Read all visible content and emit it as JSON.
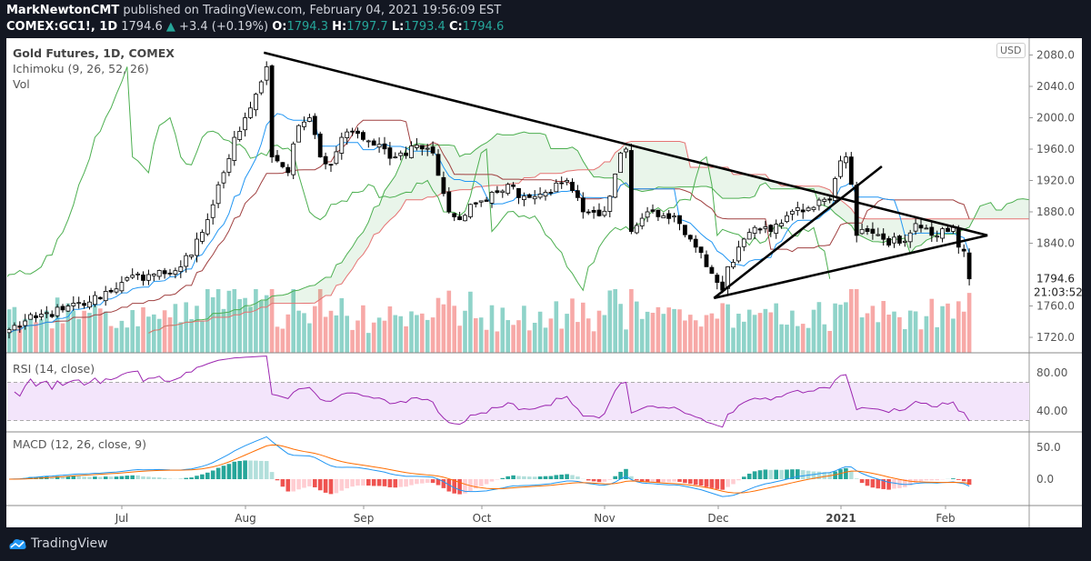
{
  "header": {
    "author": "MarkNewtonCMT",
    "published": "published on TradingView.com, February 04, 2021 19:56:09 EST",
    "symbol": "COMEX:GC1!, 1D",
    "last": "1794.6",
    "change": "+3.4 (+0.19%)",
    "o_label": "O:",
    "o": "1794.3",
    "h_label": "H:",
    "h": "1797.7",
    "l_label": "L:",
    "l": "1793.4",
    "c_label": "C:",
    "c": "1794.6"
  },
  "legend": {
    "title": "Gold Futures, 1D, COMEX",
    "ichimoku": "Ichimoku (9, 26, 52, 26)",
    "vol": "Vol",
    "rsi": "RSI (14, close)",
    "macd": "MACD (12, 26, close, 9)"
  },
  "currency": "USD",
  "brand": "TradingView",
  "colors": {
    "tenkan": "#2196f3",
    "kijun": "#a04040",
    "chikou": "#4caf50",
    "spanA": "#4caf50",
    "spanB": "#e57373",
    "rsi": "#9c27b0",
    "macd": "#2196f3",
    "signal": "#ff6d00",
    "up": "#26a69a",
    "down": "#ef5350"
  },
  "chart_data": {
    "type": "candlestick",
    "title": "Gold Futures, 1D, COMEX",
    "ylim": [
      1700,
      2090
    ],
    "price_ticks": [
      "2080.0",
      "2040.0",
      "2000.0",
      "1960.0",
      "1920.0",
      "1880.0",
      "1840.0",
      "1760.0",
      "1720.0"
    ],
    "current_price": "1794.6",
    "countdown": "21:03:52",
    "time_ticks": [
      "Jul",
      "Aug",
      "Sep",
      "Oct",
      "Nov",
      "Dec",
      "2021",
      "Feb"
    ],
    "rsi_ticks": [
      "80.00",
      "40.00"
    ],
    "macd_ticks": [
      "50.0",
      "0.0"
    ],
    "bars": 180,
    "close_anchors": [
      [
        0,
        1730
      ],
      [
        5,
        1745
      ],
      [
        10,
        1755
      ],
      [
        15,
        1765
      ],
      [
        21,
        1790
      ],
      [
        26,
        1800
      ],
      [
        31,
        1805
      ],
      [
        34,
        1825
      ],
      [
        37,
        1870
      ],
      [
        40,
        1930
      ],
      [
        42,
        1975
      ],
      [
        44,
        2000
      ],
      [
        46,
        2030
      ],
      [
        48,
        2065
      ],
      [
        49,
        1950
      ],
      [
        50,
        1945
      ],
      [
        52,
        1930
      ],
      [
        54,
        1990
      ],
      [
        56,
        2000
      ],
      [
        58,
        1950
      ],
      [
        60,
        1940
      ],
      [
        62,
        1975
      ],
      [
        65,
        1980
      ],
      [
        68,
        1965
      ],
      [
        72,
        1950
      ],
      [
        76,
        1965
      ],
      [
        79,
        1955
      ],
      [
        82,
        1880
      ],
      [
        84,
        1870
      ],
      [
        87,
        1890
      ],
      [
        90,
        1905
      ],
      [
        93,
        1915
      ],
      [
        96,
        1900
      ],
      [
        100,
        1905
      ],
      [
        104,
        1920
      ],
      [
        107,
        1880
      ],
      [
        110,
        1875
      ],
      [
        112,
        1900
      ],
      [
        114,
        1955
      ],
      [
        115,
        1960
      ],
      [
        116,
        1855
      ],
      [
        119,
        1880
      ],
      [
        122,
        1875
      ],
      [
        125,
        1865
      ],
      [
        128,
        1835
      ],
      [
        130,
        1810
      ],
      [
        132,
        1790
      ],
      [
        133,
        1780
      ],
      [
        134,
        1810
      ],
      [
        136,
        1835
      ],
      [
        139,
        1860
      ],
      [
        142,
        1855
      ],
      [
        145,
        1875
      ],
      [
        148,
        1880
      ],
      [
        151,
        1895
      ],
      [
        153,
        1895
      ],
      [
        155,
        1945
      ],
      [
        156,
        1950
      ],
      [
        157,
        1915
      ],
      [
        158,
        1850
      ],
      [
        160,
        1855
      ],
      [
        163,
        1845
      ],
      [
        166,
        1840
      ],
      [
        169,
        1865
      ],
      [
        172,
        1850
      ],
      [
        175,
        1855
      ],
      [
        176,
        1860
      ],
      [
        177,
        1835
      ],
      [
        178,
        1830
      ],
      [
        179,
        1794.6
      ]
    ],
    "trendlines": [
      {
        "from": [
          47.5,
          2083
        ],
        "to": [
          182.4,
          1850
        ]
      },
      {
        "from": [
          131.4,
          1770
        ],
        "to": [
          182.4,
          1850
        ]
      },
      {
        "from": [
          131.4,
          1770
        ],
        "to": [
          162.7,
          1938
        ]
      }
    ],
    "indicators": [
      "Ichimoku (9, 26, 52, 26)",
      "Vol",
      "RSI (14, close)",
      "MACD (12, 26, close, 9)"
    ]
  }
}
